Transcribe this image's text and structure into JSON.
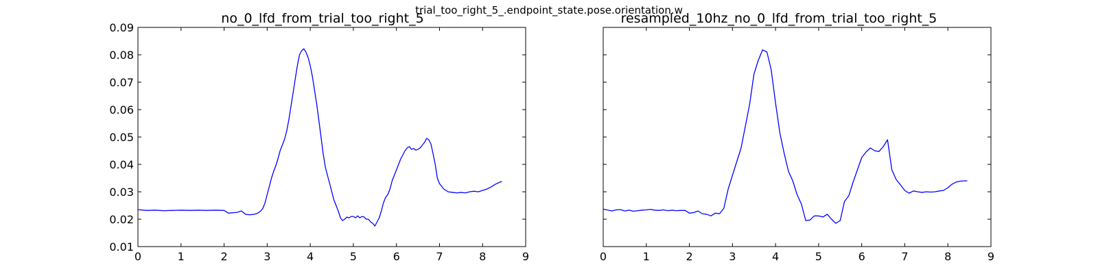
{
  "figure": {
    "suptitle": "trial_too_right_5_.endpoint_state.pose.orientation.w"
  },
  "chart_data": [
    {
      "type": "line",
      "title": "no_0_lfd_from_trial_too_right_5",
      "xlabel": "",
      "ylabel": "",
      "xlim": [
        0,
        9
      ],
      "ylim": [
        0.01,
        0.09
      ],
      "xticks": [
        0,
        1,
        2,
        3,
        4,
        5,
        6,
        7,
        8,
        9
      ],
      "yticks": [
        0.01,
        0.02,
        0.03,
        0.04,
        0.05,
        0.06,
        0.07,
        0.08,
        0.09
      ],
      "xtick_labels": [
        "0",
        "1",
        "2",
        "3",
        "4",
        "5",
        "6",
        "7",
        "8",
        "9"
      ],
      "ytick_labels": [
        "0.01",
        "0.02",
        "0.03",
        "0.04",
        "0.05",
        "0.06",
        "0.07",
        "0.08",
        "0.09"
      ],
      "grid": false,
      "color": "#0000ff",
      "series": [
        {
          "x": [
            0,
            0.2,
            0.4,
            0.6,
            0.8,
            1.0,
            1.2,
            1.4,
            1.6,
            1.8,
            2.0,
            2.1,
            2.3,
            2.4,
            2.5,
            2.6,
            2.7,
            2.75,
            2.8,
            2.85,
            2.9,
            2.95,
            3.0,
            3.05,
            3.1,
            3.15,
            3.2,
            3.25,
            3.3,
            3.35,
            3.4,
            3.45,
            3.5,
            3.55,
            3.6,
            3.65,
            3.7,
            3.75,
            3.8,
            3.85,
            3.9,
            3.95,
            4.0,
            4.05,
            4.1,
            4.15,
            4.2,
            4.25,
            4.3,
            4.35,
            4.4,
            4.45,
            4.5,
            4.55,
            4.6,
            4.65,
            4.7,
            4.75,
            4.8,
            4.85,
            4.9,
            4.95,
            5.0,
            5.05,
            5.1,
            5.15,
            5.2,
            5.25,
            5.3,
            5.35,
            5.4,
            5.45,
            5.5,
            5.55,
            5.6,
            5.65,
            5.7,
            5.75,
            5.8,
            5.85,
            5.9,
            5.95,
            6.0,
            6.05,
            6.1,
            6.15,
            6.2,
            6.25,
            6.3,
            6.35,
            6.4,
            6.45,
            6.5,
            6.55,
            6.6,
            6.65,
            6.7,
            6.75,
            6.8,
            6.85,
            6.9,
            6.95,
            7.0,
            7.1,
            7.2,
            7.3,
            7.4,
            7.5,
            7.6,
            7.7,
            7.8,
            7.9,
            8.0,
            8.1,
            8.2,
            8.3,
            8.4,
            8.45
          ],
          "y": [
            0.0235,
            0.0232,
            0.0233,
            0.0231,
            0.0232,
            0.0233,
            0.0232,
            0.0233,
            0.0232,
            0.0233,
            0.0232,
            0.0222,
            0.0225,
            0.023,
            0.0218,
            0.0216,
            0.0218,
            0.022,
            0.0224,
            0.023,
            0.024,
            0.026,
            0.029,
            0.032,
            0.035,
            0.0375,
            0.0395,
            0.042,
            0.045,
            0.047,
            0.049,
            0.052,
            0.056,
            0.061,
            0.066,
            0.071,
            0.076,
            0.08,
            0.0815,
            0.0822,
            0.081,
            0.079,
            0.076,
            0.072,
            0.067,
            0.062,
            0.056,
            0.05,
            0.044,
            0.039,
            0.036,
            0.033,
            0.03,
            0.027,
            0.025,
            0.023,
            0.0205,
            0.0195,
            0.02,
            0.0208,
            0.0205,
            0.021,
            0.021,
            0.0205,
            0.0212,
            0.0205,
            0.021,
            0.0208,
            0.02,
            0.02,
            0.019,
            0.0185,
            0.0175,
            0.019,
            0.0205,
            0.023,
            0.026,
            0.028,
            0.029,
            0.031,
            0.034,
            0.036,
            0.038,
            0.04,
            0.042,
            0.0435,
            0.045,
            0.046,
            0.0465,
            0.0455,
            0.0458,
            0.0452,
            0.0455,
            0.046,
            0.047,
            0.048,
            0.0495,
            0.049,
            0.0475,
            0.044,
            0.04,
            0.035,
            0.033,
            0.031,
            0.03,
            0.0298,
            0.0296,
            0.0298,
            0.0296,
            0.03,
            0.0302,
            0.03,
            0.0305,
            0.031,
            0.0318,
            0.0328,
            0.0335,
            0.0338
          ]
        }
      ]
    },
    {
      "type": "line",
      "title": "resampled_10hz_no_0_lfd_from_trial_too_right_5",
      "xlabel": "",
      "ylabel": "",
      "xlim": [
        0,
        9
      ],
      "ylim": [
        0.01,
        0.09
      ],
      "xticks": [
        0,
        1,
        2,
        3,
        4,
        5,
        6,
        7,
        8,
        9
      ],
      "xtick_labels": [
        "0",
        "1",
        "2",
        "3",
        "4",
        "5",
        "6",
        "7",
        "8",
        "9"
      ],
      "yticks": [
        0.01,
        0.02,
        0.03,
        0.04,
        0.05,
        0.06,
        0.07,
        0.08,
        0.09
      ],
      "ytick_labels": [],
      "grid": false,
      "color": "#0000ff",
      "series": [
        {
          "x": [
            0,
            0.2,
            0.3,
            0.4,
            0.5,
            0.6,
            0.7,
            0.8,
            0.9,
            1.0,
            1.1,
            1.2,
            1.3,
            1.4,
            1.5,
            1.6,
            1.7,
            1.8,
            1.9,
            2.0,
            2.1,
            2.2,
            2.3,
            2.4,
            2.5,
            2.6,
            2.7,
            2.8,
            2.9,
            3.0,
            3.1,
            3.2,
            3.3,
            3.4,
            3.5,
            3.6,
            3.7,
            3.8,
            3.9,
            4.0,
            4.1,
            4.2,
            4.3,
            4.4,
            4.5,
            4.6,
            4.7,
            4.8,
            4.9,
            5.0,
            5.1,
            5.2,
            5.3,
            5.4,
            5.5,
            5.6,
            5.7,
            5.8,
            5.9,
            6.0,
            6.1,
            6.2,
            6.3,
            6.4,
            6.5,
            6.6,
            6.7,
            6.8,
            6.9,
            7.0,
            7.1,
            7.2,
            7.3,
            7.4,
            7.5,
            7.6,
            7.7,
            7.8,
            7.9,
            8.0,
            8.1,
            8.2,
            8.3,
            8.4,
            8.45
          ],
          "y": [
            0.0237,
            0.023,
            0.0234,
            0.0235,
            0.023,
            0.0233,
            0.0229,
            0.0231,
            0.0233,
            0.0234,
            0.0236,
            0.0233,
            0.0232,
            0.0234,
            0.0231,
            0.0233,
            0.0231,
            0.0232,
            0.0232,
            0.0222,
            0.0224,
            0.023,
            0.022,
            0.0218,
            0.0212,
            0.0222,
            0.022,
            0.024,
            0.031,
            0.036,
            0.041,
            0.046,
            0.054,
            0.062,
            0.073,
            0.078,
            0.0818,
            0.081,
            0.0745,
            0.0625,
            0.0515,
            0.044,
            0.0375,
            0.034,
            0.029,
            0.0255,
            0.0195,
            0.0197,
            0.0212,
            0.0212,
            0.0208,
            0.0218,
            0.02,
            0.0185,
            0.0195,
            0.0265,
            0.0285,
            0.0335,
            0.038,
            0.0425,
            0.0445,
            0.046,
            0.045,
            0.0447,
            0.0465,
            0.049,
            0.038,
            0.0345,
            0.0325,
            0.0305,
            0.0295,
            0.0303,
            0.03,
            0.0298,
            0.03,
            0.0299,
            0.03,
            0.0303,
            0.0305,
            0.0315,
            0.0328,
            0.0336,
            0.0339,
            0.034,
            0.034
          ]
        }
      ]
    }
  ]
}
